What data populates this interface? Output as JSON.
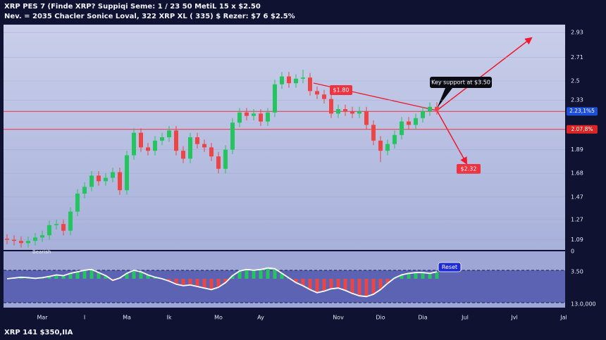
{
  "chart_data": {
    "type": "candlestick",
    "title": "XRP PES 7 (Finde XRP? Suppiqi Seme: 1 / 23 50 MetiL 15 x $2.50",
    "subtitle": "Nev. = 2035 Chacler Sonice Loval, 322 XRP XL ( 335) $ Rezer: $7 6 $2.5%",
    "footer": "XRP 141 $350,IIA",
    "categories": [
      null,
      null,
      null,
      null,
      null,
      "Mar",
      null,
      null,
      null,
      null,
      null,
      "I",
      null,
      null,
      null,
      null,
      null,
      "Ma",
      null,
      null,
      null,
      null,
      null,
      "Ik",
      null,
      null,
      null,
      null,
      null,
      null,
      "Mo",
      null,
      null,
      null,
      null,
      null,
      "Ay",
      null,
      null,
      null,
      null,
      null,
      null,
      null,
      null,
      null,
      null,
      "Nov",
      null,
      null,
      null,
      null,
      null,
      "Dio",
      null,
      null,
      null,
      null,
      null,
      "Dia",
      null,
      null,
      null,
      null,
      null,
      "Jul",
      null,
      null,
      null,
      null,
      null,
      null,
      "Jvl",
      null,
      null,
      null,
      null,
      null,
      null,
      "Jal"
    ],
    "open": [
      1.1,
      1.09,
      1.08,
      1.06,
      1.08,
      1.11,
      1.13,
      1.22,
      1.23,
      1.17,
      1.34,
      1.5,
      1.56,
      1.66,
      1.61,
      1.64,
      1.69,
      1.53,
      1.84,
      2.04,
      1.91,
      1.88,
      1.97,
      2.0,
      2.06,
      1.88,
      1.81,
      2.0,
      1.94,
      1.91,
      1.83,
      1.72,
      1.89,
      2.13,
      2.22,
      2.19,
      2.21,
      2.14,
      2.22,
      2.47,
      2.54,
      2.48,
      2.52,
      2.53,
      2.41,
      2.38,
      2.34,
      2.21,
      2.25,
      2.23,
      2.21,
      2.23,
      2.11,
      1.97,
      1.88,
      1.94,
      2.02,
      2.14,
      2.11,
      2.17,
      2.23,
      2.27,
      null,
      null,
      null,
      null,
      null,
      null,
      null,
      null,
      null,
      null,
      null,
      null,
      null,
      null,
      null,
      null,
      null,
      null
    ],
    "high": [
      1.14,
      1.13,
      1.12,
      1.12,
      1.15,
      1.17,
      1.26,
      1.27,
      1.27,
      1.38,
      1.54,
      1.6,
      1.7,
      1.7,
      1.68,
      1.73,
      1.73,
      1.88,
      2.08,
      2.08,
      1.95,
      2.01,
      2.04,
      2.1,
      2.1,
      1.92,
      2.04,
      2.04,
      1.98,
      1.95,
      1.87,
      1.93,
      2.17,
      2.26,
      2.26,
      2.25,
      2.25,
      2.26,
      2.51,
      2.58,
      2.58,
      2.56,
      2.6,
      2.57,
      2.45,
      2.42,
      2.38,
      2.29,
      2.29,
      2.27,
      2.27,
      2.27,
      2.15,
      2.01,
      1.98,
      2.06,
      2.18,
      2.18,
      2.21,
      2.27,
      2.31,
      2.31,
      null,
      null,
      null,
      null,
      null,
      null,
      null,
      null,
      null,
      null,
      null,
      null,
      null,
      null,
      null,
      null,
      null,
      null
    ],
    "low": [
      1.05,
      1.04,
      1.02,
      1.02,
      1.04,
      1.07,
      1.09,
      1.18,
      1.13,
      1.13,
      1.3,
      1.46,
      1.52,
      1.57,
      1.57,
      1.6,
      1.49,
      1.49,
      1.8,
      1.87,
      1.84,
      1.84,
      1.93,
      1.96,
      1.84,
      1.77,
      1.77,
      1.9,
      1.87,
      1.79,
      1.68,
      1.68,
      1.85,
      2.09,
      2.15,
      2.15,
      2.1,
      2.1,
      2.18,
      2.43,
      2.44,
      2.44,
      2.48,
      2.37,
      2.34,
      2.3,
      2.17,
      2.17,
      2.19,
      2.17,
      2.17,
      2.07,
      1.93,
      1.78,
      1.84,
      1.9,
      1.98,
      2.07,
      2.07,
      2.13,
      2.19,
      2.2,
      null,
      null,
      null,
      null,
      null,
      null,
      null,
      null,
      null,
      null,
      null,
      null,
      null,
      null,
      null,
      null,
      null,
      null
    ],
    "close": [
      1.09,
      1.08,
      1.06,
      1.08,
      1.11,
      1.13,
      1.22,
      1.23,
      1.17,
      1.34,
      1.5,
      1.56,
      1.66,
      1.61,
      1.64,
      1.69,
      1.53,
      1.84,
      2.04,
      1.91,
      1.88,
      1.97,
      2.0,
      2.06,
      1.88,
      1.81,
      2.0,
      1.94,
      1.91,
      1.83,
      1.72,
      1.89,
      2.13,
      2.22,
      2.19,
      2.21,
      2.14,
      2.22,
      2.47,
      2.54,
      2.48,
      2.52,
      2.53,
      2.41,
      2.38,
      2.34,
      2.21,
      2.25,
      2.23,
      2.21,
      2.23,
      2.11,
      1.97,
      1.88,
      1.94,
      2.02,
      2.14,
      2.11,
      2.17,
      2.23,
      2.27,
      2.24,
      null,
      null,
      null,
      null,
      null,
      null,
      null,
      null,
      null,
      null,
      null,
      null,
      null,
      null,
      null,
      null,
      null,
      null
    ],
    "up_color": "#22c55e",
    "down_color": "#ef4444",
    "ylim": [
      1,
      3
    ],
    "yticks": [
      2.93,
      2.71,
      2.5,
      2.33,
      1.89,
      1.68,
      1.47,
      1.27,
      1.09
    ],
    "grid": true,
    "levels": [
      {
        "value": 2.23,
        "label": "2.23,1%5",
        "color": "#1d4ed8"
      },
      {
        "value": 2.07,
        "label": "2.07,8%",
        "color": "#dc2626"
      }
    ],
    "annotations": [
      "Key support at $3.50",
      "$1.80",
      "$2.32"
    ],
    "indicator": {
      "name": "Bearish",
      "tag": "Reset",
      "labels": [
        "0",
        "3.50",
        "13.0,000"
      ],
      "ylim": [
        -60,
        60
      ],
      "values": [
        0,
        2,
        4,
        3,
        1,
        3,
        6,
        10,
        8,
        14,
        18,
        22,
        24,
        16,
        8,
        -4,
        2,
        14,
        22,
        18,
        10,
        4,
        0,
        -6,
        -14,
        -18,
        -16,
        -20,
        -24,
        -28,
        -22,
        -10,
        8,
        20,
        24,
        22,
        24,
        28,
        26,
        14,
        2,
        -10,
        -18,
        -28,
        -36,
        -32,
        -26,
        -24,
        -30,
        -38,
        -44,
        -46,
        -40,
        -28,
        -12,
        2,
        10,
        14,
        16,
        16,
        14,
        18,
        null,
        null,
        null,
        null,
        null,
        null,
        null,
        null,
        null,
        null,
        null,
        null,
        null,
        null,
        null,
        null,
        null,
        null
      ]
    }
  }
}
